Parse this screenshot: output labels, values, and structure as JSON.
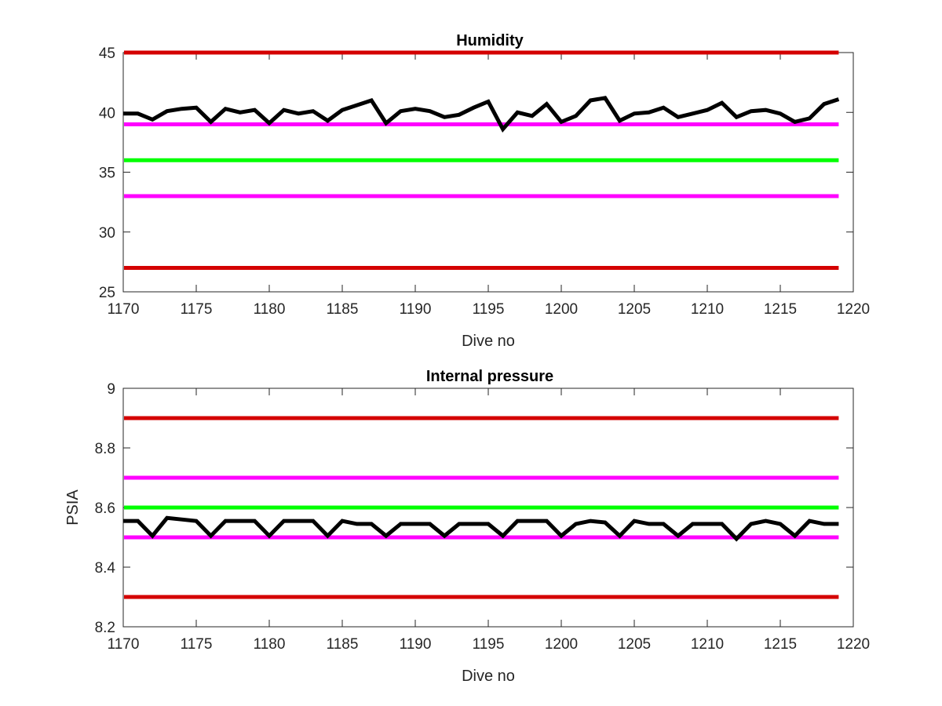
{
  "chart_data": [
    {
      "type": "line",
      "title": "Humidity",
      "xlabel": "Dive no",
      "ylabel": "",
      "xlim": [
        1170,
        1220
      ],
      "ylim": [
        25,
        45
      ],
      "xticks": [
        1170,
        1175,
        1180,
        1185,
        1190,
        1195,
        1200,
        1205,
        1210,
        1215,
        1220
      ],
      "yticks": [
        25,
        30,
        35,
        40,
        45
      ],
      "grid": false,
      "thresholds": [
        {
          "value": 45,
          "color": "#d40000"
        },
        {
          "value": 39,
          "color": "#ff00ff"
        },
        {
          "value": 36,
          "color": "#00ff00"
        },
        {
          "value": 33,
          "color": "#ff00ff"
        },
        {
          "value": 27,
          "color": "#d40000"
        }
      ],
      "series": [
        {
          "color": "#000000",
          "x": [
            1170,
            1171,
            1172,
            1173,
            1174,
            1175,
            1176,
            1177,
            1178,
            1179,
            1180,
            1181,
            1182,
            1183,
            1184,
            1185,
            1186,
            1187,
            1188,
            1189,
            1190,
            1191,
            1192,
            1193,
            1194,
            1195,
            1196,
            1197,
            1198,
            1199,
            1200,
            1201,
            1202,
            1203,
            1204,
            1205,
            1206,
            1207,
            1208,
            1209,
            1210,
            1211,
            1212,
            1213,
            1214,
            1215,
            1216,
            1217,
            1218,
            1219
          ],
          "values": [
            39.9,
            39.9,
            39.4,
            40.1,
            40.3,
            40.4,
            39.2,
            40.3,
            40.0,
            40.2,
            39.1,
            40.2,
            39.9,
            40.1,
            39.3,
            40.2,
            40.6,
            41.0,
            39.1,
            40.1,
            40.3,
            40.1,
            39.6,
            39.8,
            40.4,
            40.9,
            38.6,
            40.0,
            39.7,
            40.7,
            39.2,
            39.7,
            41.0,
            41.2,
            39.3,
            39.9,
            40.0,
            40.4,
            39.6,
            39.9,
            40.2,
            40.8,
            39.6,
            40.1,
            40.2,
            39.9,
            39.2,
            39.5,
            40.7,
            41.1
          ]
        }
      ]
    },
    {
      "type": "line",
      "title": "Internal pressure",
      "xlabel": "Dive no",
      "ylabel": "PSIA",
      "xlim": [
        1170,
        1220
      ],
      "ylim": [
        8.2,
        9.0
      ],
      "xticks": [
        1170,
        1175,
        1180,
        1185,
        1190,
        1195,
        1200,
        1205,
        1210,
        1215,
        1220
      ],
      "yticks": [
        8.2,
        8.4,
        8.6,
        8.8,
        9
      ],
      "ytick_labels": [
        "8.2",
        "8.4",
        "8.6",
        "8.8",
        "9"
      ],
      "grid": false,
      "thresholds": [
        {
          "value": 8.9,
          "color": "#d40000"
        },
        {
          "value": 8.7,
          "color": "#ff00ff"
        },
        {
          "value": 8.6,
          "color": "#00ff00"
        },
        {
          "value": 8.5,
          "color": "#ff00ff"
        },
        {
          "value": 8.3,
          "color": "#d40000"
        }
      ],
      "series": [
        {
          "color": "#000000",
          "x": [
            1170,
            1171,
            1172,
            1173,
            1174,
            1175,
            1176,
            1177,
            1178,
            1179,
            1180,
            1181,
            1182,
            1183,
            1184,
            1185,
            1186,
            1187,
            1188,
            1189,
            1190,
            1191,
            1192,
            1193,
            1194,
            1195,
            1196,
            1197,
            1198,
            1199,
            1200,
            1201,
            1202,
            1203,
            1204,
            1205,
            1206,
            1207,
            1208,
            1209,
            1210,
            1211,
            1212,
            1213,
            1214,
            1215,
            1216,
            1217,
            1218,
            1219
          ],
          "values": [
            8.555,
            8.555,
            8.505,
            8.565,
            8.56,
            8.555,
            8.505,
            8.555,
            8.555,
            8.555,
            8.505,
            8.555,
            8.555,
            8.555,
            8.505,
            8.555,
            8.545,
            8.545,
            8.505,
            8.545,
            8.545,
            8.545,
            8.505,
            8.545,
            8.545,
            8.545,
            8.505,
            8.555,
            8.555,
            8.555,
            8.505,
            8.545,
            8.555,
            8.55,
            8.505,
            8.555,
            8.545,
            8.545,
            8.505,
            8.545,
            8.545,
            8.545,
            8.495,
            8.545,
            8.555,
            8.545,
            8.505,
            8.555,
            8.545,
            8.545
          ]
        }
      ]
    }
  ]
}
